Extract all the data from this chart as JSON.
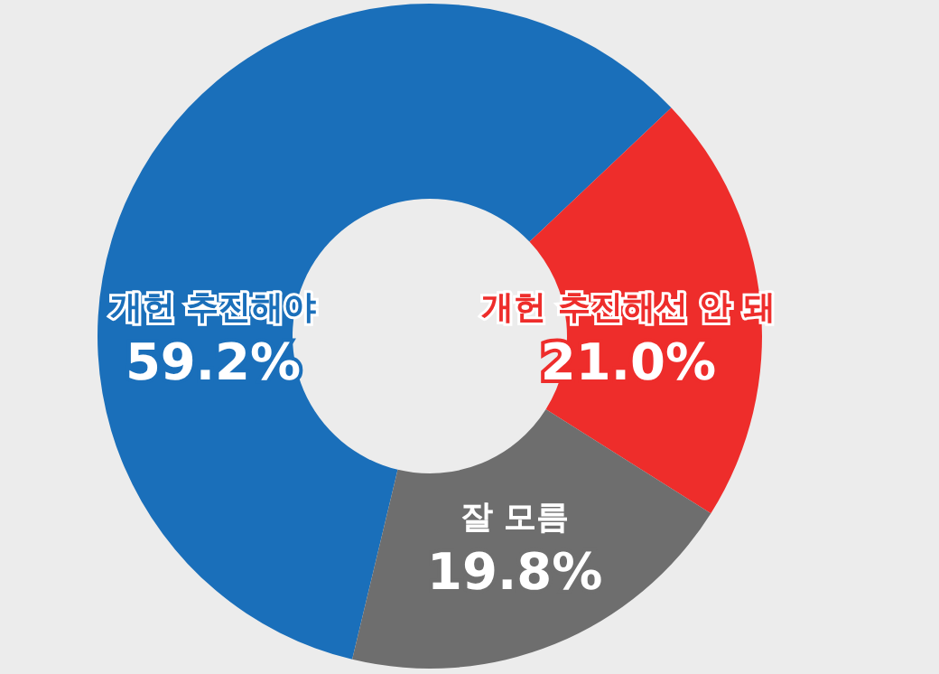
{
  "chart_data": {
    "type": "donut",
    "categories": [
      "개헌 추진해야",
      "개헌 추진해선 안 돼",
      "잘 모름"
    ],
    "values": [
      59.2,
      21.0,
      19.8
    ],
    "value_labels": [
      "59.2%",
      "21.0%",
      "19.8%"
    ],
    "colors": [
      "#1a6fba",
      "#ee2d2b",
      "#6e6e6e"
    ],
    "legend": false
  }
}
